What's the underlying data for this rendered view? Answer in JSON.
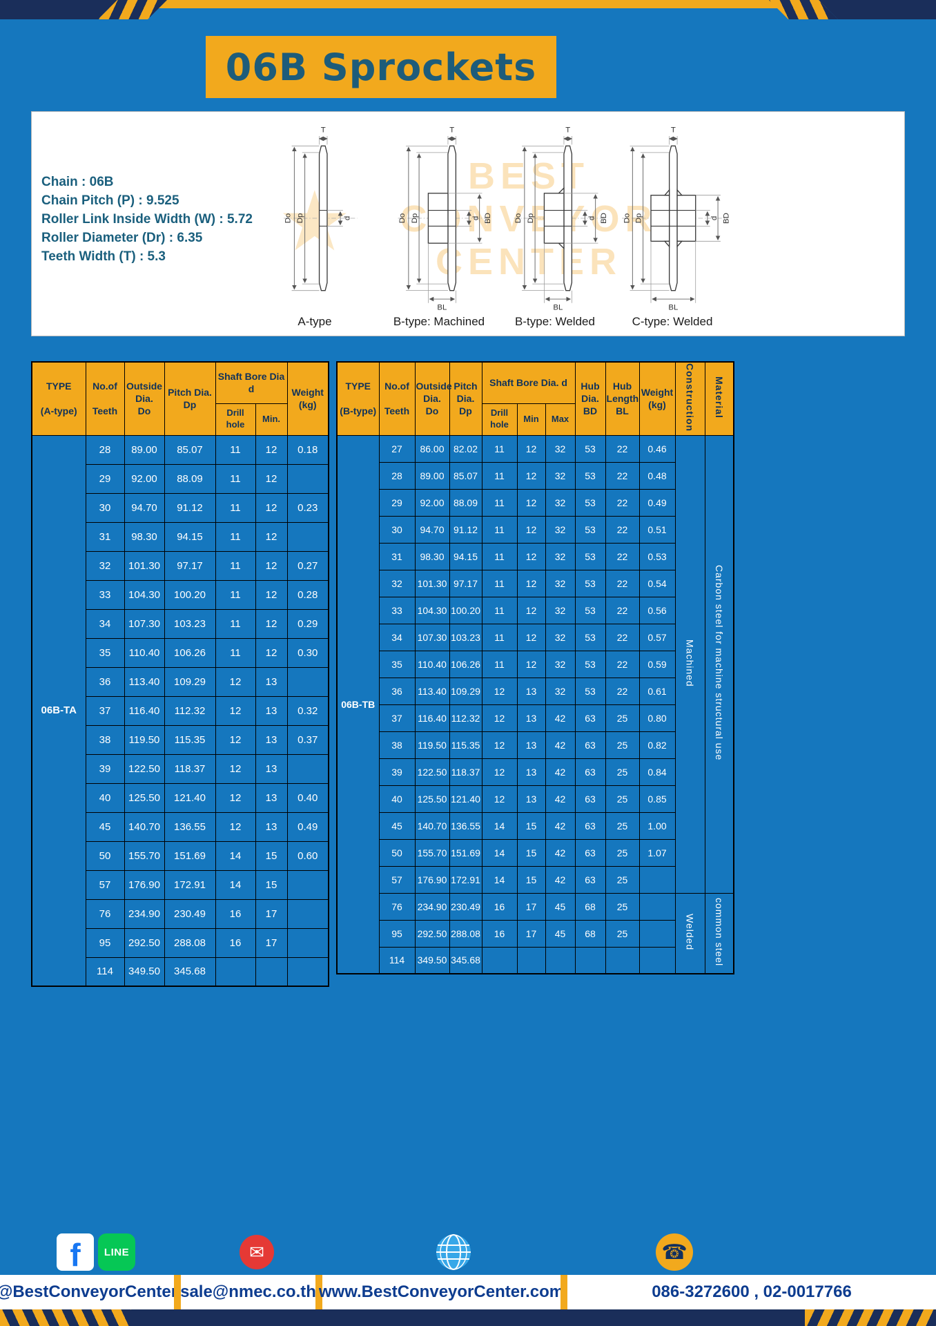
{
  "page": {
    "title": "06B Sprockets"
  },
  "colors": {
    "background": "#1577be",
    "accent_yellow": "#f2a91d",
    "navy": "#1a2e5a",
    "title_text": "#1d5c7a",
    "footer_text": "#0d3c8f"
  },
  "spec": {
    "lines": [
      "Chain : 06B",
      "Chain Pitch (P) : 9.525",
      "Roller Link Inside Width (W) : 5.72",
      "Roller Diameter (Dr) : 6.35",
      "Teeth Width (T) : 5.3"
    ]
  },
  "diagrams": {
    "captions": [
      "A-type",
      "B-type: Machined",
      "B-type: Welded",
      "C-type: Welded"
    ],
    "dims": {
      "T": "T",
      "Do": "Do",
      "Dp": "Dp",
      "d": "d",
      "BD": "BD",
      "BL": "BL"
    },
    "watermark": {
      "line1": "BEST",
      "line2": "CONVEYOR",
      "line3": "CENTER",
      "star_glyph": "★"
    }
  },
  "tableA": {
    "type_label": "06B-TA",
    "headers": {
      "type": "TYPE\n\n(A-type)",
      "teeth": "No.of\n\nTeeth",
      "outside": "Outside\nDia.\nDo",
      "pitch": "Pitch Dia.\nDp",
      "shaft": "Shaft Bore Dia d",
      "drill": "Drill hole",
      "min": "Min.",
      "weight": "Weight\n(kg)"
    },
    "rows": [
      [
        "28",
        "89.00",
        "85.07",
        "11",
        "12",
        "0.18"
      ],
      [
        "29",
        "92.00",
        "88.09",
        "11",
        "12",
        ""
      ],
      [
        "30",
        "94.70",
        "91.12",
        "11",
        "12",
        "0.23"
      ],
      [
        "31",
        "98.30",
        "94.15",
        "11",
        "12",
        ""
      ],
      [
        "32",
        "101.30",
        "97.17",
        "11",
        "12",
        "0.27"
      ],
      [
        "33",
        "104.30",
        "100.20",
        "11",
        "12",
        "0.28"
      ],
      [
        "34",
        "107.30",
        "103.23",
        "11",
        "12",
        "0.29"
      ],
      [
        "35",
        "110.40",
        "106.26",
        "11",
        "12",
        "0.30"
      ],
      [
        "36",
        "113.40",
        "109.29",
        "12",
        "13",
        ""
      ],
      [
        "37",
        "116.40",
        "112.32",
        "12",
        "13",
        "0.32"
      ],
      [
        "38",
        "119.50",
        "115.35",
        "12",
        "13",
        "0.37"
      ],
      [
        "39",
        "122.50",
        "118.37",
        "12",
        "13",
        ""
      ],
      [
        "40",
        "125.50",
        "121.40",
        "12",
        "13",
        "0.40"
      ],
      [
        "45",
        "140.70",
        "136.55",
        "12",
        "13",
        "0.49"
      ],
      [
        "50",
        "155.70",
        "151.69",
        "14",
        "15",
        "0.60"
      ],
      [
        "57",
        "176.90",
        "172.91",
        "14",
        "15",
        ""
      ],
      [
        "76",
        "234.90",
        "230.49",
        "16",
        "17",
        ""
      ],
      [
        "95",
        "292.50",
        "288.08",
        "16",
        "17",
        ""
      ],
      [
        "114",
        "349.50",
        "345.68",
        "",
        "",
        ""
      ]
    ]
  },
  "tableB": {
    "type_label": "06B-TB",
    "headers": {
      "type": "TYPE\n\n(B-type)",
      "teeth": "No.of\n\nTeeth",
      "outside": "Outside\nDia.\nDo",
      "pitch": "Pitch\nDia.\nDp",
      "shaft": "Shaft Bore Dia. d",
      "drill": "Drill hole",
      "min": "Min",
      "max": "Max",
      "hub_dia": "Hub\nDia.\nBD",
      "hub_len": "Hub\nLength\nBL",
      "weight": "Weight\n(kg)",
      "construction": "Construction",
      "material": "Material"
    },
    "construction": {
      "machined": "Machined",
      "machined_span": 17,
      "welded": "Welded",
      "welded_span": 3
    },
    "material": {
      "carbon": "Carbon steel for machine structural use",
      "common": "common steel"
    },
    "rows": [
      [
        "27",
        "86.00",
        "82.02",
        "11",
        "12",
        "32",
        "53",
        "22",
        "0.46"
      ],
      [
        "28",
        "89.00",
        "85.07",
        "11",
        "12",
        "32",
        "53",
        "22",
        "0.48"
      ],
      [
        "29",
        "92.00",
        "88.09",
        "11",
        "12",
        "32",
        "53",
        "22",
        "0.49"
      ],
      [
        "30",
        "94.70",
        "91.12",
        "11",
        "12",
        "32",
        "53",
        "22",
        "0.51"
      ],
      [
        "31",
        "98.30",
        "94.15",
        "11",
        "12",
        "32",
        "53",
        "22",
        "0.53"
      ],
      [
        "32",
        "101.30",
        "97.17",
        "11",
        "12",
        "32",
        "53",
        "22",
        "0.54"
      ],
      [
        "33",
        "104.30",
        "100.20",
        "11",
        "12",
        "32",
        "53",
        "22",
        "0.56"
      ],
      [
        "34",
        "107.30",
        "103.23",
        "11",
        "12",
        "32",
        "53",
        "22",
        "0.57"
      ],
      [
        "35",
        "110.40",
        "106.26",
        "11",
        "12",
        "32",
        "53",
        "22",
        "0.59"
      ],
      [
        "36",
        "113.40",
        "109.29",
        "12",
        "13",
        "32",
        "53",
        "22",
        "0.61"
      ],
      [
        "37",
        "116.40",
        "112.32",
        "12",
        "13",
        "42",
        "63",
        "25",
        "0.80"
      ],
      [
        "38",
        "119.50",
        "115.35",
        "12",
        "13",
        "42",
        "63",
        "25",
        "0.82"
      ],
      [
        "39",
        "122.50",
        "118.37",
        "12",
        "13",
        "42",
        "63",
        "25",
        "0.84"
      ],
      [
        "40",
        "125.50",
        "121.40",
        "12",
        "13",
        "42",
        "63",
        "25",
        "0.85"
      ],
      [
        "45",
        "140.70",
        "136.55",
        "14",
        "15",
        "42",
        "63",
        "25",
        "1.00"
      ],
      [
        "50",
        "155.70",
        "151.69",
        "14",
        "15",
        "42",
        "63",
        "25",
        "1.07"
      ],
      [
        "57",
        "176.90",
        "172.91",
        "14",
        "15",
        "42",
        "63",
        "25",
        ""
      ],
      [
        "76",
        "234.90",
        "230.49",
        "16",
        "17",
        "45",
        "68",
        "25",
        ""
      ],
      [
        "95",
        "292.50",
        "288.08",
        "16",
        "17",
        "45",
        "68",
        "25",
        ""
      ],
      [
        "114",
        "349.50",
        "345.68",
        "",
        "",
        "",
        "",
        "",
        ""
      ]
    ]
  },
  "footer": {
    "handle": "@BestConveyorCenter",
    "email": "sale@nmec.co.th",
    "website": "www.BestConveyorCenter.com",
    "phones": "086-3272600 , 02-0017766",
    "facebook_letter": "f",
    "line_label": "LINE",
    "mail_glyph": "✉",
    "phone_glyph": "☎"
  }
}
